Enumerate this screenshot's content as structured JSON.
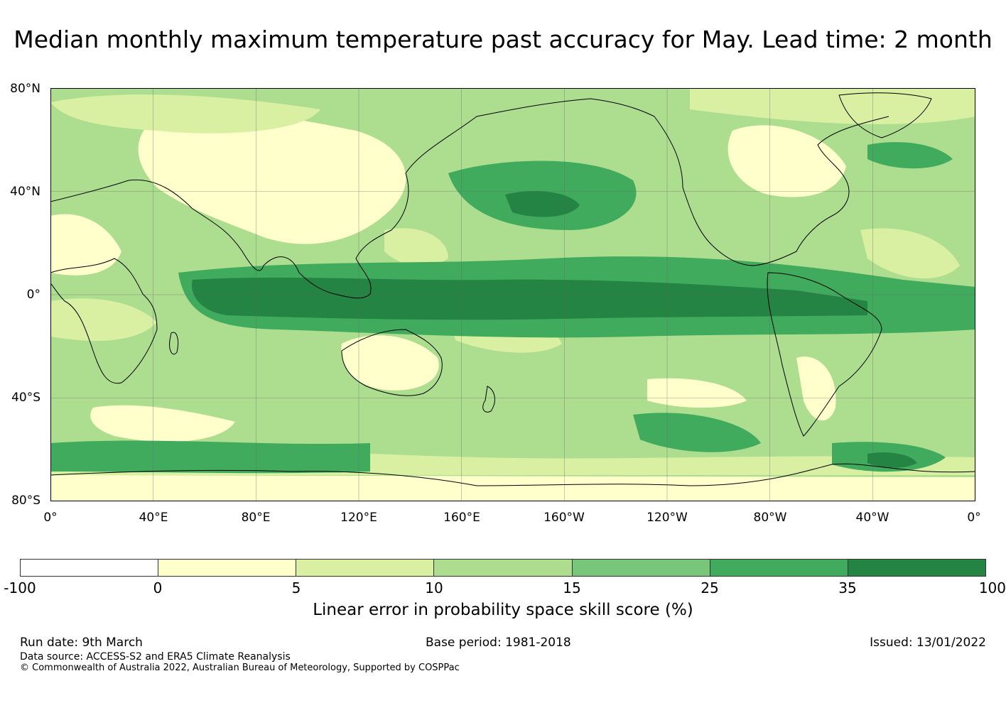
{
  "title": "Median monthly maximum temperature past accuracy for May. Lead time: 2 month",
  "map": {
    "y_ticks": [
      "80°N",
      "40°N",
      "0°",
      "40°S",
      "80°S"
    ],
    "x_ticks": [
      "0°",
      "40°E",
      "80°E",
      "120°E",
      "160°E",
      "160°W",
      "120°W",
      "80°W",
      "40°W",
      "0°"
    ]
  },
  "colorbar": {
    "colors": [
      "#ffffff",
      "#ffffcc",
      "#d9f0a3",
      "#addd8e",
      "#78c679",
      "#41ab5d",
      "#238443"
    ],
    "ticks": [
      "-100",
      "0",
      "5",
      "10",
      "15",
      "25",
      "35",
      "100"
    ],
    "label": "Linear error in probability space skill score (%)"
  },
  "footer": {
    "run_date": "Run date: 9th March",
    "base_period": "Base period: 1981-2018",
    "issued": "Issued: 13/01/2022",
    "data_source": "Data source: ACCESS-S2 and ERA5 Climate Reanalysis",
    "copyright": "© Commonwealth of Australia 2022, Australian Bureau of Meteorology, Supported by COSPPac"
  }
}
